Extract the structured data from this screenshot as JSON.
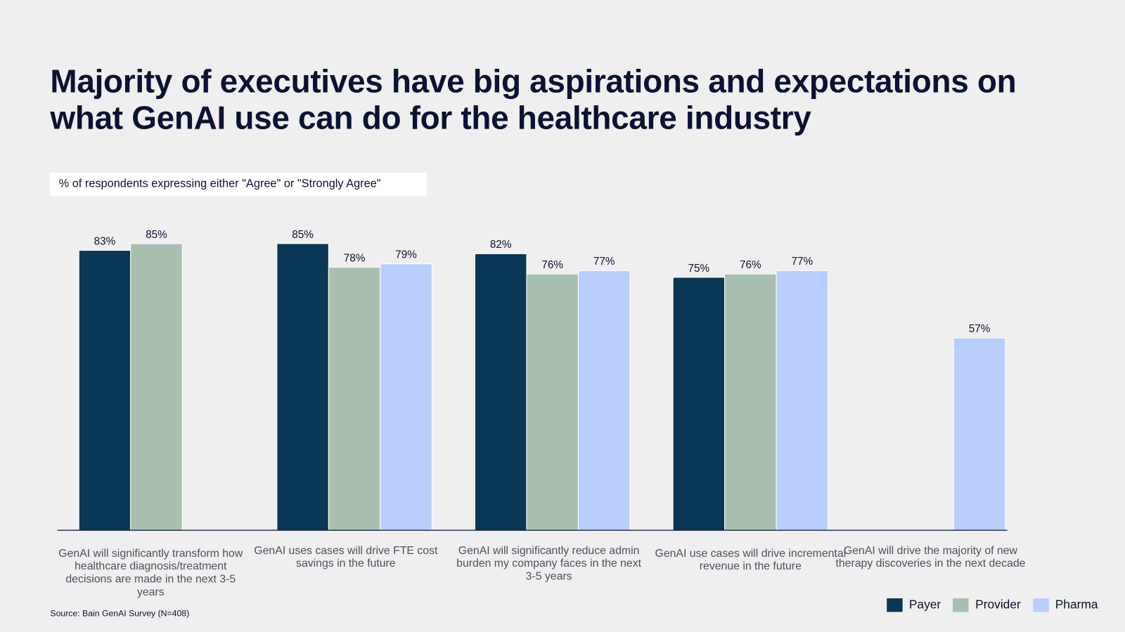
{
  "title": "Majority of executives have big aspirations and expectations on what GenAI use can do for the healthcare industry",
  "subtitle": "% of respondents expressing either \"Agree\" or \"Strongly Agree\"",
  "source": "Source: Bain GenAI Survey (N=408)",
  "chart_data": {
    "type": "bar",
    "title": "Majority of executives have big aspirations and expectations on what GenAI use can do for the healthcare industry",
    "ylabel": "% of respondents expressing either \"Agree\" or \"Strongly Agree\"",
    "ylim": [
      0,
      100
    ],
    "grid": false,
    "legend": "bottom-right",
    "categories": [
      "GenAI will significantly transform how healthcare diagnosis/treatment decisions are made in the next 3-5 years",
      "GenAI uses cases will drive FTE cost savings in the future",
      "GenAI will significantly reduce admin burden my company faces in the next 3-5 years",
      "GenAI use cases will drive incremental revenue in the future",
      "GenAI will drive the majority of new therapy discoveries in the next decade"
    ],
    "series": [
      {
        "name": "Payer",
        "color": "#0b3756",
        "values": [
          83,
          85,
          82,
          75,
          null
        ],
        "labels": [
          "83%",
          "85%",
          "82%",
          "75%",
          null
        ]
      },
      {
        "name": "Provider",
        "color": "#a9c0b0",
        "values": [
          85,
          78,
          76,
          76,
          null
        ],
        "labels": [
          "85%",
          "78%",
          "76%",
          "76%",
          null
        ]
      },
      {
        "name": "Pharma",
        "color": "#b8cefd",
        "values": [
          null,
          79,
          77,
          77,
          57
        ],
        "labels": [
          null,
          "79%",
          "77%",
          "77%",
          "57%"
        ]
      }
    ]
  }
}
